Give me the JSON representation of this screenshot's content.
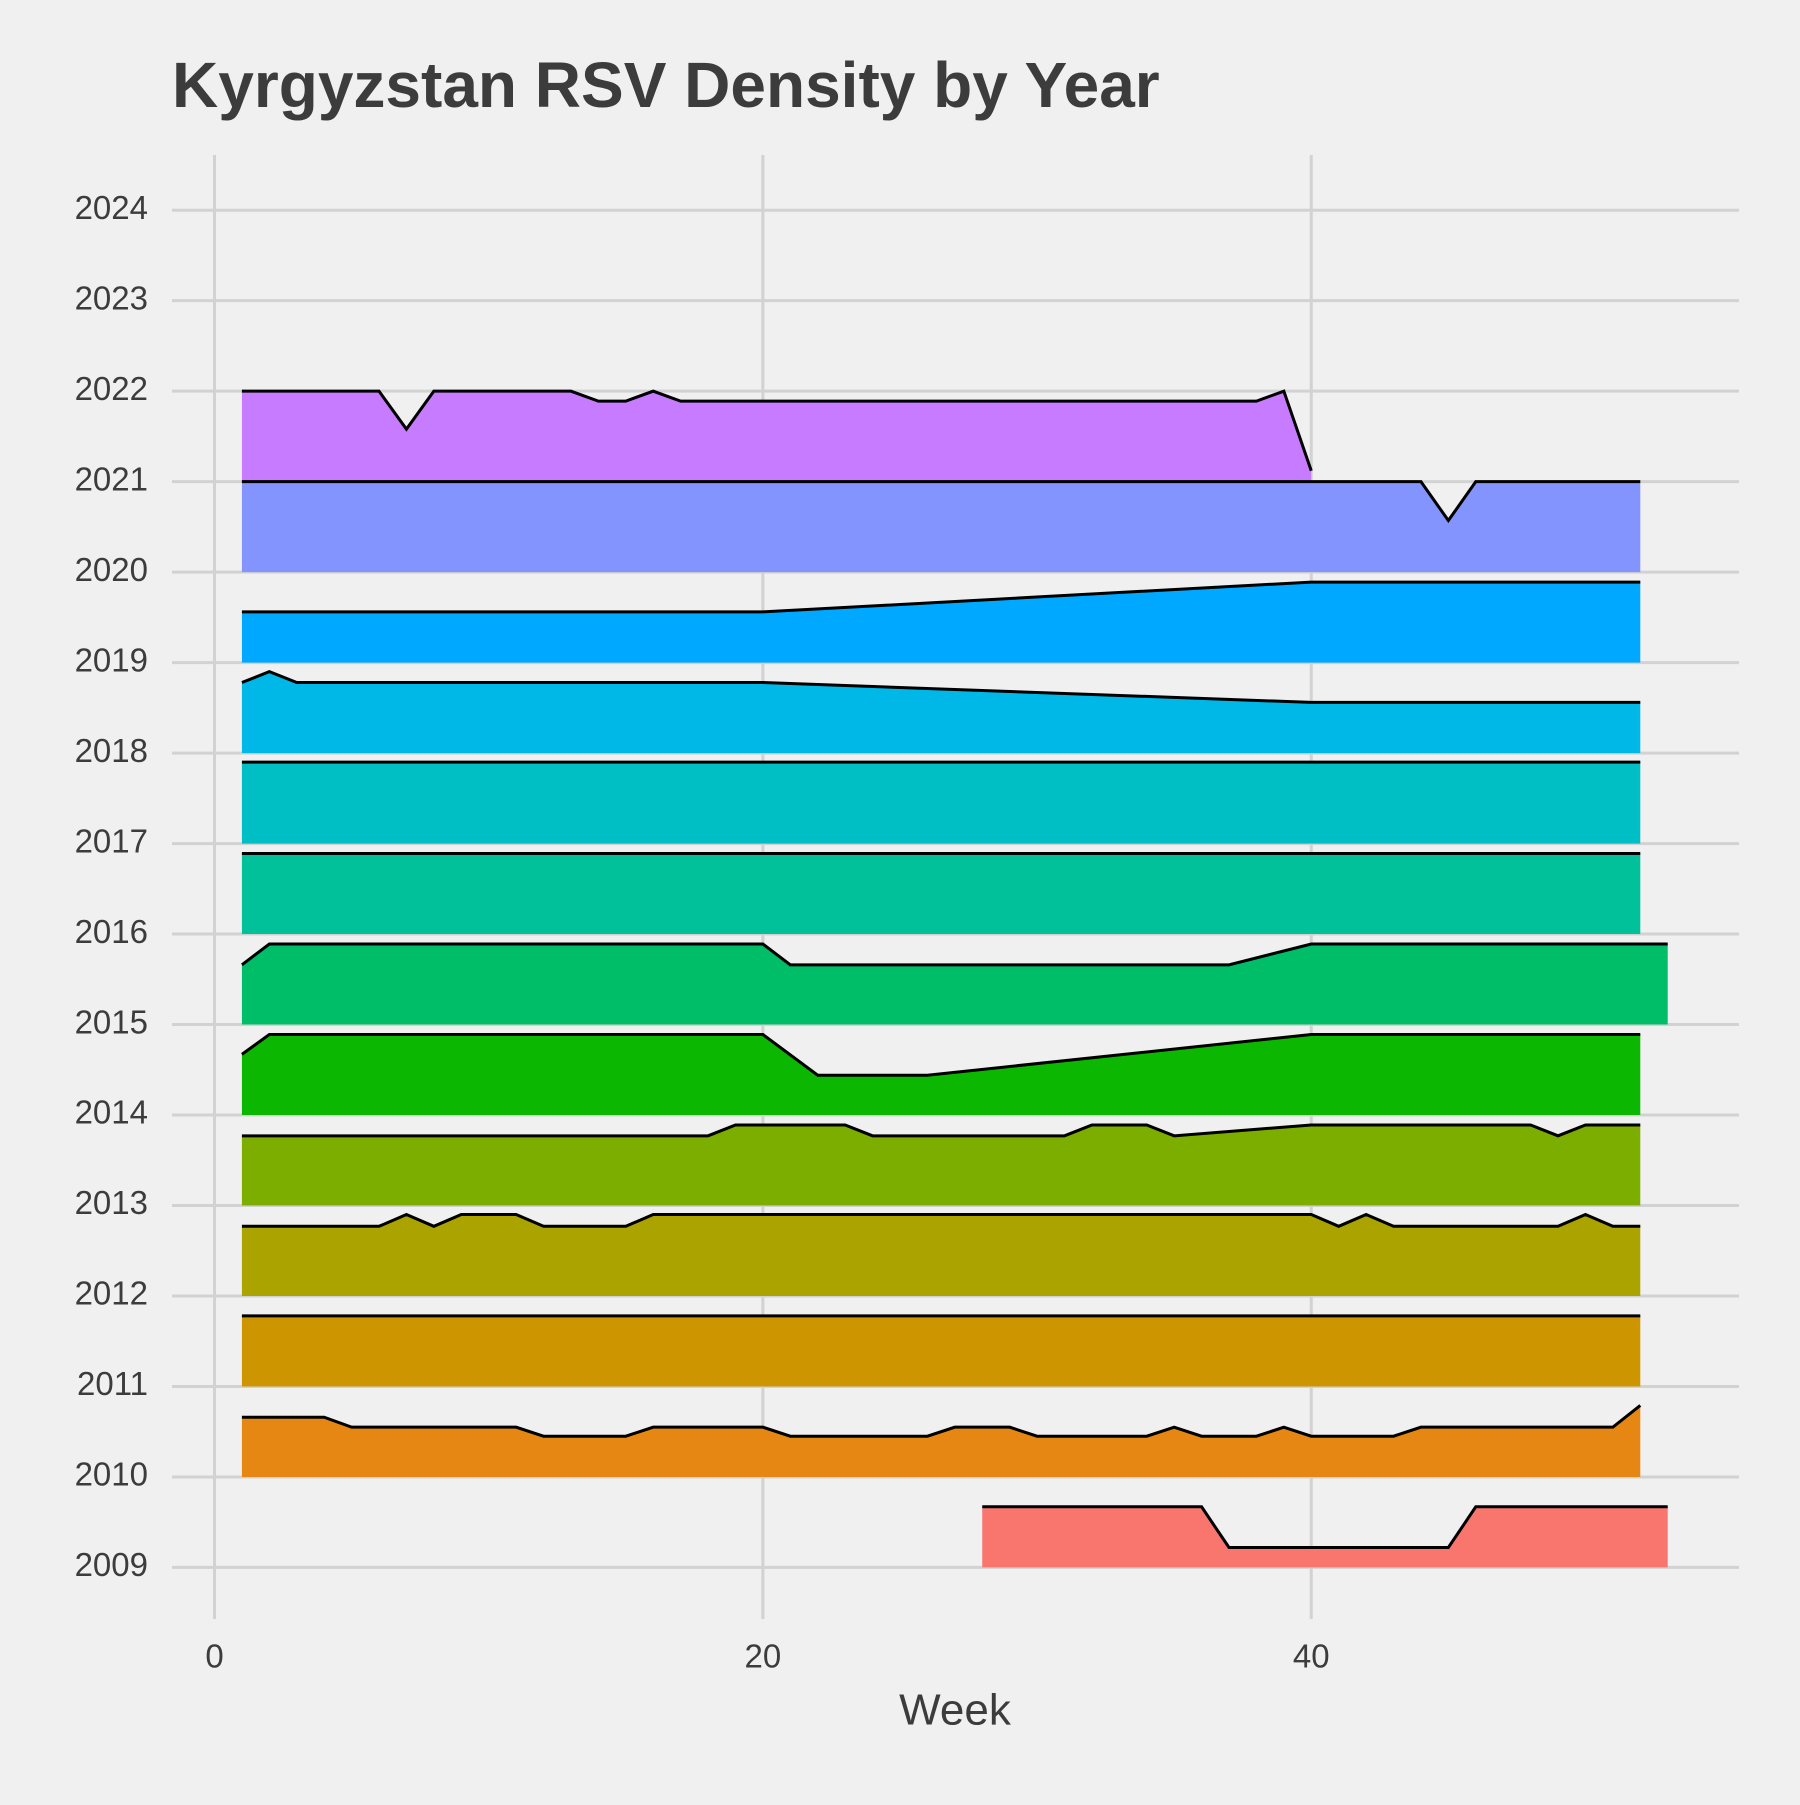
{
  "chart_data": {
    "type": "ridgeline",
    "title": "Kyrgyzstan RSV Density by Year",
    "x_label": "Week",
    "xlim": [
      -1.55,
      55.6
    ],
    "xticks": [
      0,
      20,
      40
    ],
    "ylim": [
      2008.43,
      2024.61
    ],
    "yticks": [
      2009,
      2010,
      2011,
      2012,
      2013,
      2014,
      2015,
      2016,
      2017,
      2018,
      2019,
      2020,
      2021,
      2022,
      2023,
      2024
    ],
    "grid": true,
    "line_color": "#000000",
    "series": [
      {
        "baseline": 2009,
        "color": "#F8766D",
        "x": [
          28,
          36,
          37,
          45,
          46,
          53
        ],
        "values": [
          2009.67,
          2009.67,
          2009.22,
          2009.22,
          2009.67,
          2009.67
        ]
      },
      {
        "baseline": 2010,
        "color": "#E68613",
        "x": [
          1,
          4,
          5,
          11,
          12,
          15,
          16,
          20,
          21,
          26,
          27,
          29,
          30,
          34,
          35,
          36,
          38,
          39,
          40,
          43,
          44,
          51,
          52
        ],
        "values": [
          2010.66,
          2010.66,
          2010.55,
          2010.55,
          2010.45,
          2010.45,
          2010.55,
          2010.55,
          2010.45,
          2010.45,
          2010.55,
          2010.55,
          2010.45,
          2010.45,
          2010.55,
          2010.45,
          2010.45,
          2010.55,
          2010.45,
          2010.45,
          2010.55,
          2010.55,
          2010.79
        ]
      },
      {
        "baseline": 2011,
        "color": "#CD9600",
        "x": [
          1,
          52
        ],
        "values": [
          2011.78,
          2011.78
        ]
      },
      {
        "baseline": 2012,
        "color": "#ABA300",
        "x": [
          1,
          6,
          7,
          8,
          9,
          11,
          12,
          15,
          16,
          40,
          41,
          42,
          43,
          49,
          50,
          51,
          52
        ],
        "values": [
          2012.77,
          2012.77,
          2012.9,
          2012.77,
          2012.9,
          2012.9,
          2012.77,
          2012.77,
          2012.9,
          2012.9,
          2012.77,
          2012.9,
          2012.77,
          2012.77,
          2012.9,
          2012.77,
          2012.77
        ]
      },
      {
        "baseline": 2013,
        "color": "#7CAE00",
        "x": [
          1,
          18,
          19,
          23,
          24,
          31,
          32,
          34,
          35,
          40,
          48,
          49,
          50,
          52
        ],
        "values": [
          2013.77,
          2013.77,
          2013.89,
          2013.89,
          2013.77,
          2013.77,
          2013.89,
          2013.89,
          2013.77,
          2013.89,
          2013.89,
          2013.77,
          2013.89,
          2013.89
        ]
      },
      {
        "baseline": 2014,
        "color": "#0CB702",
        "x": [
          1,
          2,
          20,
          22,
          26,
          40,
          52
        ],
        "values": [
          2014.67,
          2014.89,
          2014.89,
          2014.44,
          2014.44,
          2014.89,
          2014.89
        ]
      },
      {
        "baseline": 2015,
        "color": "#00BE67",
        "x": [
          1,
          2,
          20,
          21,
          37,
          40,
          53
        ],
        "values": [
          2015.66,
          2015.89,
          2015.89,
          2015.66,
          2015.66,
          2015.89,
          2015.89
        ]
      },
      {
        "baseline": 2016,
        "color": "#00C19A",
        "x": [
          1,
          52
        ],
        "values": [
          2016.89,
          2016.89
        ]
      },
      {
        "baseline": 2017,
        "color": "#00BFC4",
        "x": [
          1,
          52
        ],
        "values": [
          2017.9,
          2017.9
        ]
      },
      {
        "baseline": 2018,
        "color": "#00B8E7",
        "x": [
          1,
          2,
          3,
          20,
          40,
          52
        ],
        "values": [
          2018.78,
          2018.9,
          2018.78,
          2018.78,
          2018.56,
          2018.56
        ]
      },
      {
        "baseline": 2019,
        "color": "#00A9FF",
        "x": [
          1,
          20,
          40,
          52
        ],
        "values": [
          2019.56,
          2019.56,
          2019.89,
          2019.89
        ]
      },
      {
        "baseline": 2020,
        "color": "#8494FF",
        "x": [
          1,
          44,
          45,
          46,
          52
        ],
        "values": [
          2021.0,
          2021.0,
          2020.57,
          2021.0,
          2021.0
        ]
      },
      {
        "baseline": 2021,
        "color": "#C77CFF",
        "x": [
          1,
          6,
          7,
          8,
          13,
          14,
          15,
          16,
          17,
          38,
          39,
          40
        ],
        "values": [
          2022.0,
          2022.0,
          2021.58,
          2022.0,
          2022.0,
          2021.89,
          2021.89,
          2022.0,
          2021.89,
          2021.89,
          2022.0,
          2021.12
        ]
      }
    ]
  }
}
